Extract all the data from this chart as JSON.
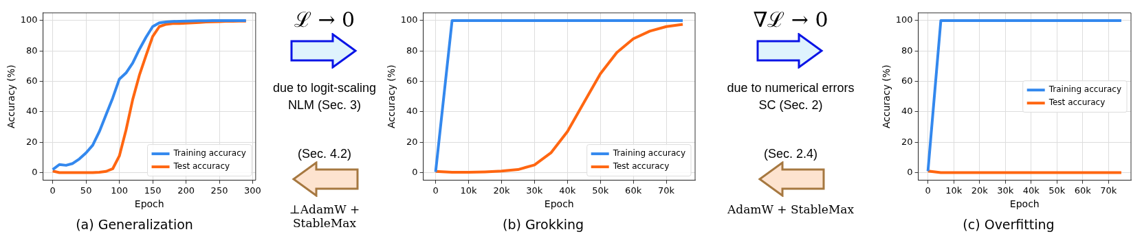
{
  "chart_data": [
    {
      "type": "line",
      "title": "(a) Generalization",
      "xlabel": "Epoch",
      "ylabel": "Accuracy (%)",
      "xlim": [
        -14.5,
        304.5
      ],
      "xticks": [
        0,
        50,
        100,
        150,
        200,
        250,
        300
      ],
      "ylim": [
        -5,
        105
      ],
      "yticks": [
        0,
        20,
        40,
        60,
        80,
        100
      ],
      "grid": true,
      "legend": "bottom right",
      "marker": "none",
      "line_style": "solid",
      "x": [
        0,
        10,
        20,
        30,
        40,
        50,
        60,
        70,
        80,
        90,
        100,
        110,
        120,
        130,
        140,
        150,
        160,
        170,
        180,
        190,
        200,
        210,
        220,
        230,
        240,
        250,
        260,
        270,
        280,
        290
      ],
      "series": [
        {
          "name": "Training accuracy",
          "color": "#3388ee",
          "values": [
            2,
            5.3,
            4.8,
            6,
            9,
            13,
            18,
            27,
            38,
            49,
            61.5,
            65.5,
            72,
            81,
            89,
            96,
            98.5,
            99,
            99.4,
            99.5,
            99.6,
            99.7,
            99.8,
            99.8,
            99.9,
            99.9,
            100,
            100,
            100,
            100
          ]
        },
        {
          "name": "Test accuracy",
          "color": "#ff6611",
          "values": [
            1,
            0,
            0,
            0,
            0,
            0,
            0,
            0.2,
            0.8,
            2.5,
            11,
            28,
            48,
            64,
            77,
            89.5,
            96,
            97.5,
            98,
            98,
            98.3,
            98.5,
            98.7,
            99,
            99.2,
            99.3,
            99.5,
            99.5,
            99.6,
            99.6
          ]
        }
      ]
    },
    {
      "type": "other",
      "annotations": [
        "ℒ → 0",
        "due to logit-scaling\nNLM (Sec. 3)",
        "(Sec. 4.2)",
        "⊥AdamW + StableMax"
      ]
    },
    {
      "type": "line",
      "title": "(b) Grokking",
      "xlabel": "Epoch",
      "ylabel": "Accuracy (%)",
      "xlim": [
        -3750,
        78750
      ],
      "xticks": [
        0,
        {
          "value": 10000,
          "label": "10k"
        },
        {
          "value": 20000,
          "label": "20k"
        },
        {
          "value": 30000,
          "label": "30k"
        },
        {
          "value": 40000,
          "label": "40k"
        },
        {
          "value": 50000,
          "label": "50k"
        },
        {
          "value": 60000,
          "label": "60k"
        },
        {
          "value": 70000,
          "label": "70k"
        }
      ],
      "ylim": [
        -5,
        105
      ],
      "yticks": [
        0,
        20,
        40,
        60,
        80,
        100
      ],
      "grid": true,
      "legend": "bottom right",
      "marker": "none",
      "line_style": "solid",
      "x": [
        0,
        5000,
        10000,
        15000,
        20000,
        25000,
        30000,
        35000,
        40000,
        45000,
        50000,
        55000,
        60000,
        65000,
        70000,
        75000
      ],
      "series": [
        {
          "name": "Training accuracy",
          "color": "#3388ee",
          "values": [
            0.5,
            100,
            100,
            100,
            100,
            100,
            100,
            100,
            100,
            100,
            100,
            100,
            100,
            100,
            100,
            100
          ]
        },
        {
          "name": "Test accuracy",
          "color": "#ff6611",
          "values": [
            0.8,
            0.2,
            0.2,
            0.5,
            1,
            2,
            5,
            13,
            27,
            46,
            65,
            79,
            88,
            93,
            96,
            97.5
          ]
        }
      ]
    },
    {
      "type": "other",
      "annotations": [
        "∇ℒ → 0",
        "due to numerical errors\nSC (Sec. 2)",
        "(Sec. 2.4)",
        "AdamW + StableMax"
      ]
    },
    {
      "type": "line",
      "title": "(c) Overfitting",
      "xlabel": "Epoch",
      "ylabel": "Accuracy (%)",
      "xlim": [
        -3750,
        78750
      ],
      "xticks": [
        0,
        {
          "value": 10000,
          "label": "10k"
        },
        {
          "value": 20000,
          "label": "20k"
        },
        {
          "value": 30000,
          "label": "30k"
        },
        {
          "value": 40000,
          "label": "40k"
        },
        {
          "value": 50000,
          "label": "50k"
        },
        {
          "value": 60000,
          "label": "60k"
        },
        {
          "value": 70000,
          "label": "70k"
        }
      ],
      "ylim": [
        -5,
        105
      ],
      "yticks": [
        0,
        20,
        40,
        60,
        80,
        100
      ],
      "grid": true,
      "legend": "right",
      "marker": "none",
      "line_style": "solid",
      "x": [
        0,
        5000,
        10000,
        20000,
        30000,
        40000,
        50000,
        60000,
        70000,
        75000
      ],
      "series": [
        {
          "name": "Training accuracy",
          "color": "#3388ee",
          "values": [
            1,
            100,
            100,
            100,
            100,
            100,
            100,
            100,
            100,
            100
          ]
        },
        {
          "name": "Test accuracy",
          "color": "#ff6611",
          "values": [
            1,
            0,
            0,
            0,
            0,
            0,
            0,
            0,
            0,
            0
          ]
        }
      ]
    }
  ]
}
